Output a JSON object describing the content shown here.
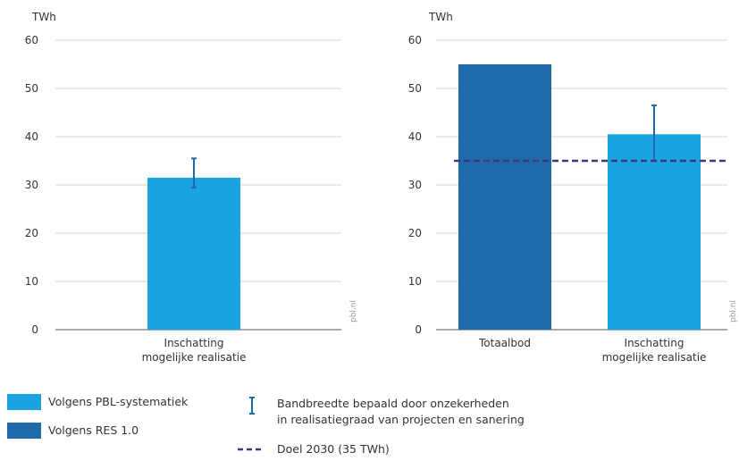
{
  "chart_data": [
    {
      "type": "bar",
      "unit_label": "TWh",
      "ylim": [
        0,
        60
      ],
      "yticks": [
        0,
        10,
        20,
        30,
        40,
        50,
        60
      ],
      "categories": [
        "Inschatting\nmogelijke realisatie"
      ],
      "bars": [
        {
          "category": "Inschatting\nmogelijke realisatie",
          "value": 31.5,
          "series": "Volgens PBL-systematiek",
          "error": [
            29.5,
            35.5
          ]
        }
      ],
      "source": "pbl.nl"
    },
    {
      "type": "bar",
      "unit_label": "TWh",
      "ylim": [
        0,
        60
      ],
      "yticks": [
        0,
        10,
        20,
        30,
        40,
        50,
        60
      ],
      "categories": [
        "Totaalbod",
        "Inschatting\nmogelijke realisatie"
      ],
      "bars": [
        {
          "category": "Totaalbod",
          "value": 55,
          "series": "Volgens RES 1.0"
        },
        {
          "category": "Inschatting\nmogelijke realisatie",
          "value": 40.5,
          "series": "Volgens PBL-systematiek",
          "error": [
            35,
            46.5
          ]
        }
      ],
      "reference_line": {
        "value": 35,
        "label": "Doel 2030 (35 TWh)"
      },
      "source": "pbl.nl"
    }
  ],
  "colors": {
    "pbl": "#1aa3e0",
    "res": "#1f6aab",
    "error": "#1f6aab",
    "goal": "#3b3a78",
    "grid": "#d6d6d6"
  },
  "legend": {
    "pbl_label": "Volgens PBL-systematiek",
    "res_label": "Volgens RES 1.0",
    "error_label_1": "Bandbreedte bepaald door onzekerheden",
    "error_label_2": "in realisatiegraad van projecten en sanering",
    "goal_label": "Doel 2030 (35 TWh)"
  }
}
